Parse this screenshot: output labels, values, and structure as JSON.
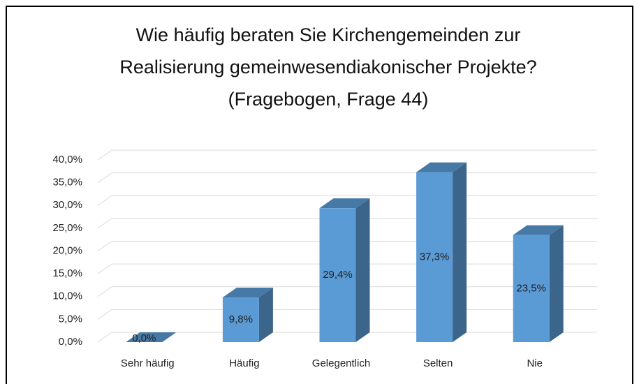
{
  "chart_data": {
    "type": "bar3d",
    "title": [
      "Wie häufig beraten Sie Kirchengemeinden  zur",
      "Realisierung  gemeinwesendiakonischer  Projekte?",
      "(Fragebogen, Frage 44)"
    ],
    "categories": [
      "Sehr häufig",
      "Häufig",
      "Gelegentlich",
      "Selten",
      "Nie"
    ],
    "values": [
      0,
      9.8,
      29.4,
      37.3,
      23.5
    ],
    "value_labels": [
      "0,0%",
      "9,8%",
      "29,4%",
      "37,3%",
      "23,5%"
    ],
    "color": "#5b9bd5",
    "ylim": [
      0,
      40
    ],
    "yticks": [
      {
        "value": 0,
        "label": "0,0%"
      },
      {
        "value": 5,
        "label": "5,0%"
      },
      {
        "value": 10,
        "label": "10,0%"
      },
      {
        "value": 15,
        "label": "15,0%"
      },
      {
        "value": 20,
        "label": "20,0%"
      },
      {
        "value": 25,
        "label": "25,0%"
      },
      {
        "value": 30,
        "label": "30,0%"
      },
      {
        "value": 35,
        "label": "35,0%"
      },
      {
        "value": 40,
        "label": "40,0%"
      }
    ],
    "grid": true
  }
}
